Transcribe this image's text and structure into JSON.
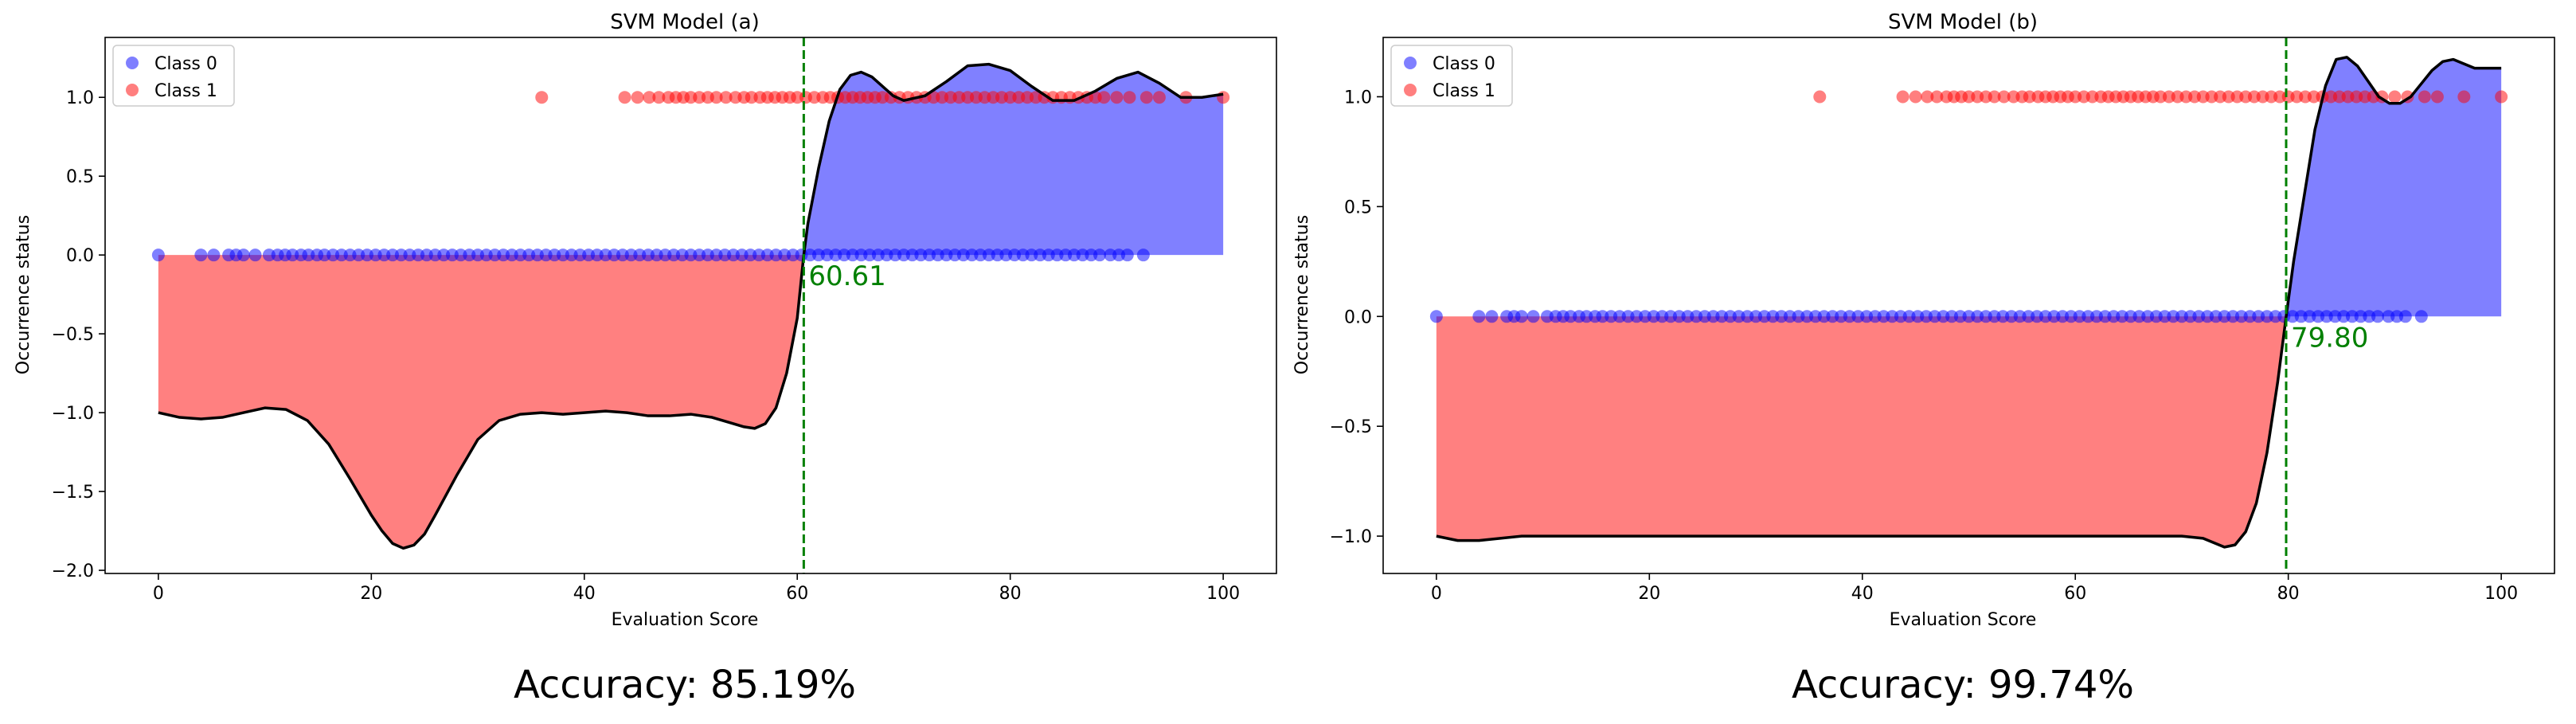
{
  "chart_data": [
    {
      "type": "scatter",
      "title": "SVM Model (a)",
      "xlabel": "Evaluation Score",
      "ylabel": "Occurrence status",
      "xlim": [
        -5,
        105
      ],
      "ylim": [
        -2.02,
        1.38
      ],
      "xticks": [
        0,
        20,
        40,
        60,
        80,
        100
      ],
      "yticks": [
        -2.0,
        -1.5,
        -1.0,
        -0.5,
        0.0,
        0.5,
        1.0
      ],
      "legend": {
        "placement": "top-left",
        "entries": [
          "Class 0",
          "Class 1"
        ]
      },
      "threshold": 60.61,
      "threshold_label": "60.61",
      "accuracy_label": "Accuracy: 85.19%",
      "colors": {
        "class0": "#0000ff",
        "class1": "#ff0000",
        "threshold": "#008000",
        "curve": "#000000",
        "fill_pos": "#8080ff",
        "fill_neg": "#ff8080"
      },
      "series": [
        {
          "name": "Class 0",
          "y": 0,
          "x": [
            0.0,
            4.0,
            5.2,
            6.6,
            7.3,
            8.0,
            9.1,
            10.4,
            11.2,
            11.9,
            12.6,
            13.4,
            14.1,
            14.9,
            15.6,
            16.4,
            17.2,
            18.0,
            18.8,
            19.6,
            20.4,
            21.2,
            22.0,
            22.8,
            23.6,
            24.4,
            25.2,
            26.0,
            26.8,
            27.6,
            28.4,
            29.2,
            30.0,
            30.8,
            31.6,
            32.4,
            33.2,
            34.0,
            34.8,
            35.6,
            36.4,
            37.2,
            38.0,
            38.8,
            39.6,
            40.4,
            41.2,
            42.0,
            42.8,
            43.6,
            44.4,
            45.2,
            46.0,
            46.8,
            47.6,
            48.4,
            49.2,
            50.0,
            50.8,
            51.6,
            52.4,
            53.2,
            54.0,
            54.8,
            55.6,
            56.4,
            57.2,
            58.0,
            58.8,
            59.6,
            60.4,
            61.2,
            62.0,
            62.8,
            63.6,
            64.4,
            65.2,
            66.0,
            66.8,
            67.6,
            68.4,
            69.2,
            70.0,
            70.8,
            71.6,
            72.4,
            73.2,
            74.0,
            74.8,
            75.6,
            76.4,
            77.2,
            78.0,
            78.8,
            79.6,
            80.4,
            81.2,
            82.0,
            82.8,
            83.6,
            84.4,
            85.2,
            86.0,
            86.8,
            87.6,
            88.4,
            89.4,
            90.2,
            91.0,
            92.5
          ]
        },
        {
          "name": "Class 1",
          "y": 1,
          "x": [
            36.0,
            43.8,
            45.0,
            46.1,
            47.0,
            47.9,
            48.6,
            49.3,
            50.0,
            50.8,
            51.6,
            52.4,
            53.3,
            54.2,
            55.0,
            55.7,
            56.5,
            57.2,
            57.9,
            58.6,
            59.3,
            60.0,
            60.8,
            61.6,
            62.4,
            63.1,
            63.8,
            64.5,
            65.2,
            65.9,
            66.6,
            67.3,
            68.0,
            68.8,
            69.6,
            70.4,
            71.2,
            72.0,
            72.8,
            73.6,
            74.4,
            75.2,
            76.0,
            76.8,
            77.6,
            78.4,
            79.2,
            80.0,
            80.8,
            81.6,
            82.4,
            83.2,
            84.0,
            84.8,
            85.6,
            86.4,
            87.2,
            88.0,
            88.8,
            90.0,
            91.2,
            92.8,
            94.0,
            96.5,
            100.0
          ]
        }
      ],
      "decision_curve": {
        "x": [
          0,
          2,
          4,
          6,
          8,
          10,
          12,
          14,
          16,
          18,
          20,
          21,
          22,
          23,
          24,
          25,
          26,
          28,
          30,
          32,
          34,
          36,
          38,
          40,
          42,
          44,
          46,
          48,
          50,
          52,
          54,
          55,
          56,
          57,
          58,
          59,
          60,
          60.61,
          61,
          62,
          63,
          64,
          65,
          66,
          67,
          68,
          69,
          70,
          72,
          74,
          76,
          78,
          80,
          82,
          84,
          86,
          88,
          90,
          92,
          94,
          96,
          98,
          100
        ],
        "y": [
          -1.0,
          -1.03,
          -1.04,
          -1.03,
          -1.0,
          -0.97,
          -0.98,
          -1.05,
          -1.2,
          -1.42,
          -1.65,
          -1.75,
          -1.83,
          -1.86,
          -1.84,
          -1.77,
          -1.65,
          -1.4,
          -1.17,
          -1.05,
          -1.01,
          -1.0,
          -1.01,
          -1.0,
          -0.99,
          -1.0,
          -1.02,
          -1.02,
          -1.01,
          -1.03,
          -1.07,
          -1.09,
          -1.1,
          -1.07,
          -0.97,
          -0.75,
          -0.4,
          0.0,
          0.2,
          0.55,
          0.85,
          1.05,
          1.14,
          1.16,
          1.13,
          1.07,
          1.01,
          0.98,
          1.01,
          1.1,
          1.2,
          1.21,
          1.17,
          1.07,
          0.98,
          0.98,
          1.04,
          1.12,
          1.16,
          1.09,
          1.0,
          1.0,
          1.02
        ]
      }
    },
    {
      "type": "scatter",
      "title": "SVM Model (b)",
      "xlabel": "Evaluation Score",
      "ylabel": "Occurrence status",
      "xlim": [
        -5,
        105
      ],
      "ylim": [
        -1.17,
        1.27
      ],
      "xticks": [
        0,
        20,
        40,
        60,
        80,
        100
      ],
      "yticks": [
        -1.0,
        -0.5,
        0.0,
        0.5,
        1.0
      ],
      "legend": {
        "placement": "top-left",
        "entries": [
          "Class 0",
          "Class 1"
        ]
      },
      "threshold": 79.8,
      "threshold_label": "79.80",
      "accuracy_label": "Accuracy: 99.74%",
      "colors": {
        "class0": "#0000ff",
        "class1": "#ff0000",
        "threshold": "#008000",
        "curve": "#000000",
        "fill_pos": "#8080ff",
        "fill_neg": "#ff8080"
      },
      "series": [
        {
          "name": "Class 0",
          "y": 0,
          "x": [
            0.0,
            4.0,
            5.2,
            6.6,
            7.3,
            8.0,
            9.1,
            10.4,
            11.2,
            11.9,
            12.6,
            13.4,
            14.1,
            14.9,
            15.6,
            16.4,
            17.2,
            18.0,
            18.8,
            19.6,
            20.4,
            21.2,
            22.0,
            22.8,
            23.6,
            24.4,
            25.2,
            26.0,
            26.8,
            27.6,
            28.4,
            29.2,
            30.0,
            30.8,
            31.6,
            32.4,
            33.2,
            34.0,
            34.8,
            35.6,
            36.4,
            37.2,
            38.0,
            38.8,
            39.6,
            40.4,
            41.2,
            42.0,
            42.8,
            43.6,
            44.4,
            45.2,
            46.0,
            46.8,
            47.6,
            48.4,
            49.2,
            50.0,
            50.8,
            51.6,
            52.4,
            53.2,
            54.0,
            54.8,
            55.6,
            56.4,
            57.2,
            58.0,
            58.8,
            59.6,
            60.4,
            61.2,
            62.0,
            62.8,
            63.6,
            64.4,
            65.2,
            66.0,
            66.8,
            67.6,
            68.4,
            69.2,
            70.0,
            70.8,
            71.6,
            72.4,
            73.2,
            74.0,
            74.8,
            75.6,
            76.4,
            77.2,
            78.0,
            78.8,
            79.6,
            80.4,
            81.2,
            82.0,
            82.8,
            83.6,
            84.4,
            85.2,
            86.0,
            86.8,
            87.6,
            88.4,
            89.4,
            90.2,
            91.0,
            92.5
          ]
        },
        {
          "name": "Class 1",
          "y": 1,
          "x": [
            36.0,
            43.8,
            45.0,
            46.1,
            47.0,
            47.9,
            48.6,
            49.3,
            50.0,
            50.8,
            51.6,
            52.4,
            53.3,
            54.2,
            55.0,
            55.7,
            56.5,
            57.2,
            57.9,
            58.6,
            59.3,
            60.0,
            60.8,
            61.6,
            62.4,
            63.1,
            63.8,
            64.5,
            65.2,
            65.9,
            66.6,
            67.3,
            68.0,
            68.8,
            69.6,
            70.4,
            71.2,
            72.0,
            72.8,
            73.6,
            74.4,
            75.2,
            76.0,
            76.8,
            77.6,
            78.4,
            79.2,
            80.0,
            80.8,
            81.6,
            82.4,
            83.2,
            84.0,
            84.8,
            85.6,
            86.4,
            87.2,
            88.0,
            88.8,
            90.0,
            91.2,
            92.8,
            94.0,
            96.5,
            100.0
          ]
        }
      ],
      "decision_curve": {
        "x": [
          0,
          2,
          4,
          6,
          8,
          10,
          14,
          18,
          22,
          26,
          30,
          34,
          38,
          42,
          46,
          50,
          54,
          58,
          62,
          66,
          70,
          72,
          73,
          74,
          75,
          76,
          77,
          78,
          79,
          79.8,
          80.5,
          81.5,
          82.5,
          83.5,
          84.5,
          85.5,
          86.5,
          87.5,
          88.5,
          89.5,
          90.5,
          91.5,
          92.5,
          93.5,
          94.5,
          95.5,
          96.5,
          97.5,
          98.5,
          99.5,
          100
        ],
        "y": [
          -1.0,
          -1.02,
          -1.02,
          -1.01,
          -1.0,
          -1.0,
          -1.0,
          -1.0,
          -1.0,
          -1.0,
          -1.0,
          -1.0,
          -1.0,
          -1.0,
          -1.0,
          -1.0,
          -1.0,
          -1.0,
          -1.0,
          -1.0,
          -1.0,
          -1.01,
          -1.03,
          -1.05,
          -1.04,
          -0.98,
          -0.85,
          -0.62,
          -0.3,
          0.0,
          0.25,
          0.55,
          0.85,
          1.05,
          1.17,
          1.18,
          1.14,
          1.07,
          1.0,
          0.97,
          0.97,
          1.0,
          1.06,
          1.12,
          1.16,
          1.17,
          1.15,
          1.13,
          1.13,
          1.13,
          1.13
        ]
      }
    }
  ]
}
